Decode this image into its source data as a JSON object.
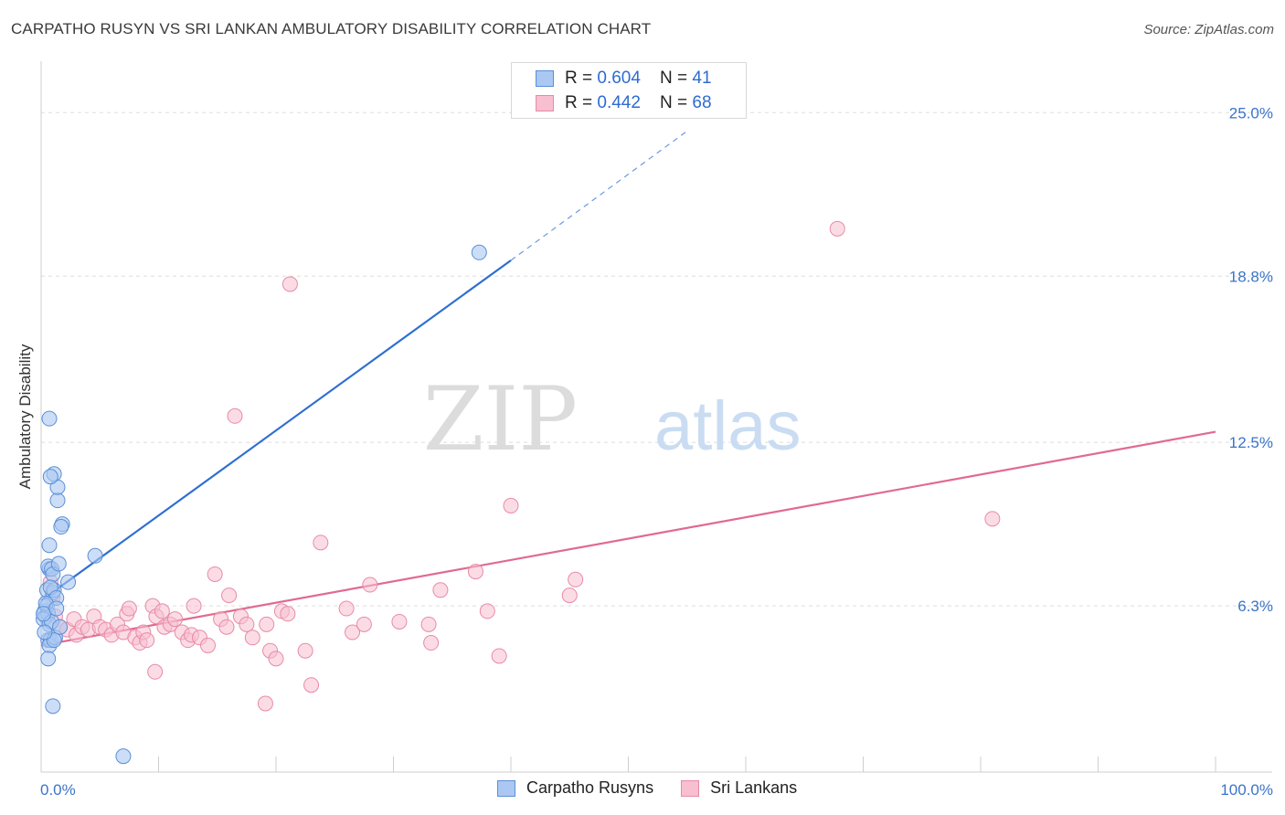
{
  "header": {
    "title": "CARPATHO RUSYN VS SRI LANKAN AMBULATORY DISABILITY CORRELATION CHART",
    "source": "Source: ZipAtlas.com"
  },
  "legend_top": {
    "rows": [
      {
        "r_label": "R = ",
        "r_value": "0.604",
        "n_label": "N = ",
        "n_value": "41"
      },
      {
        "r_label": "R = ",
        "r_value": "0.442",
        "n_label": "N = ",
        "n_value": "68"
      }
    ]
  },
  "colors": {
    "blue_fill": "#aac8f2",
    "blue_stroke": "#5b8fd6",
    "blue_line": "#2e6fd0",
    "pink_fill": "#f7bfd0",
    "pink_stroke": "#e88aa8",
    "pink_line": "#e06a92",
    "axis_label": "#3a74c8",
    "grid": "#dddddd"
  },
  "watermark": {
    "zip": "ZIP",
    "atlas": "atlas"
  },
  "chart_data": {
    "type": "scatter",
    "title": "CARPATHO RUSYN VS SRI LANKAN AMBULATORY DISABILITY CORRELATION CHART",
    "xlabel": "",
    "ylabel": "Ambulatory Disability",
    "xlim": [
      0,
      100
    ],
    "ylim": [
      0,
      26.5
    ],
    "x_tick_labels": [
      "0.0%",
      "100.0%"
    ],
    "y_ticks": [
      6.3,
      12.5,
      18.8,
      25.0
    ],
    "y_tick_labels": [
      "6.3%",
      "12.5%",
      "18.8%",
      "25.0%"
    ],
    "grid": true,
    "legend_position": "bottom",
    "series": [
      {
        "name": "Carpatho Rusyns",
        "r": 0.604,
        "n": 41,
        "points": [
          [
            0.3,
            6.1
          ],
          [
            0.4,
            5.9
          ],
          [
            0.5,
            6.3
          ],
          [
            0.6,
            6.0
          ],
          [
            0.2,
            5.8
          ],
          [
            0.7,
            5.6
          ],
          [
            0.9,
            5.7
          ],
          [
            0.5,
            6.9
          ],
          [
            0.7,
            7.7
          ],
          [
            0.6,
            7.8
          ],
          [
            0.9,
            7.7
          ],
          [
            1.0,
            7.5
          ],
          [
            1.0,
            6.8
          ],
          [
            1.1,
            6.9
          ],
          [
            0.8,
            7.0
          ],
          [
            1.3,
            6.6
          ],
          [
            1.5,
            7.9
          ],
          [
            2.3,
            7.2
          ],
          [
            0.7,
            8.6
          ],
          [
            1.8,
            9.4
          ],
          [
            1.7,
            9.3
          ],
          [
            1.4,
            10.3
          ],
          [
            1.4,
            10.8
          ],
          [
            1.1,
            11.3
          ],
          [
            0.8,
            11.2
          ],
          [
            0.7,
            13.4
          ],
          [
            0.6,
            5.0
          ],
          [
            0.8,
            5.0
          ],
          [
            0.7,
            4.8
          ],
          [
            1.2,
            5.1
          ],
          [
            1.1,
            5.0
          ],
          [
            0.6,
            4.3
          ],
          [
            1.0,
            2.5
          ],
          [
            7.0,
            0.6
          ],
          [
            4.6,
            8.2
          ],
          [
            37.3,
            19.7
          ],
          [
            0.4,
            6.4
          ],
          [
            0.2,
            6.0
          ],
          [
            1.3,
            6.2
          ],
          [
            1.6,
            5.5
          ],
          [
            0.3,
            5.3
          ]
        ],
        "trend": {
          "x0": 0.0,
          "y0": 6.5,
          "x1": 40.0,
          "y1": 19.4,
          "dashed_to_x": 55.0,
          "dashed_to_y": 24.3
        }
      },
      {
        "name": "Sri Lankans",
        "r": 0.442,
        "n": 68,
        "points": [
          [
            0.8,
            7.2
          ],
          [
            1.0,
            6.6
          ],
          [
            1.2,
            5.9
          ],
          [
            1.6,
            5.5
          ],
          [
            2.2,
            5.4
          ],
          [
            2.8,
            5.8
          ],
          [
            3.0,
            5.2
          ],
          [
            3.5,
            5.5
          ],
          [
            4.0,
            5.4
          ],
          [
            4.5,
            5.9
          ],
          [
            5.0,
            5.5
          ],
          [
            5.5,
            5.4
          ],
          [
            6.0,
            5.2
          ],
          [
            6.5,
            5.6
          ],
          [
            7.0,
            5.3
          ],
          [
            7.3,
            6.0
          ],
          [
            7.5,
            6.2
          ],
          [
            8.0,
            5.1
          ],
          [
            8.4,
            4.9
          ],
          [
            8.7,
            5.3
          ],
          [
            9.0,
            5.0
          ],
          [
            9.5,
            6.3
          ],
          [
            9.8,
            5.9
          ],
          [
            10.3,
            6.1
          ],
          [
            10.5,
            5.5
          ],
          [
            11.0,
            5.6
          ],
          [
            11.4,
            5.8
          ],
          [
            12.0,
            5.3
          ],
          [
            12.5,
            5.0
          ],
          [
            12.8,
            5.2
          ],
          [
            13.0,
            6.3
          ],
          [
            13.5,
            5.1
          ],
          [
            14.2,
            4.8
          ],
          [
            14.8,
            7.5
          ],
          [
            15.3,
            5.8
          ],
          [
            15.8,
            5.5
          ],
          [
            16.0,
            6.7
          ],
          [
            16.5,
            13.5
          ],
          [
            17.0,
            5.9
          ],
          [
            17.5,
            5.6
          ],
          [
            18.0,
            5.1
          ],
          [
            19.2,
            5.6
          ],
          [
            19.5,
            4.6
          ],
          [
            20.0,
            4.3
          ],
          [
            20.5,
            6.1
          ],
          [
            21.0,
            6.0
          ],
          [
            21.2,
            18.5
          ],
          [
            22.5,
            4.6
          ],
          [
            23.0,
            3.3
          ],
          [
            23.8,
            8.7
          ],
          [
            26.0,
            6.2
          ],
          [
            26.5,
            5.3
          ],
          [
            27.5,
            5.6
          ],
          [
            28.0,
            7.1
          ],
          [
            30.5,
            5.7
          ],
          [
            33.0,
            5.6
          ],
          [
            33.2,
            4.9
          ],
          [
            34.0,
            6.9
          ],
          [
            37.0,
            7.6
          ],
          [
            38.0,
            6.1
          ],
          [
            39.0,
            4.4
          ],
          [
            40.0,
            10.1
          ],
          [
            45.0,
            6.7
          ],
          [
            45.5,
            7.3
          ],
          [
            67.8,
            20.6
          ],
          [
            81.0,
            9.6
          ],
          [
            19.1,
            2.6
          ],
          [
            9.7,
            3.8
          ]
        ],
        "trend": {
          "x0": 0.0,
          "y0": 4.8,
          "x1": 100.0,
          "y1": 12.9
        }
      }
    ]
  }
}
